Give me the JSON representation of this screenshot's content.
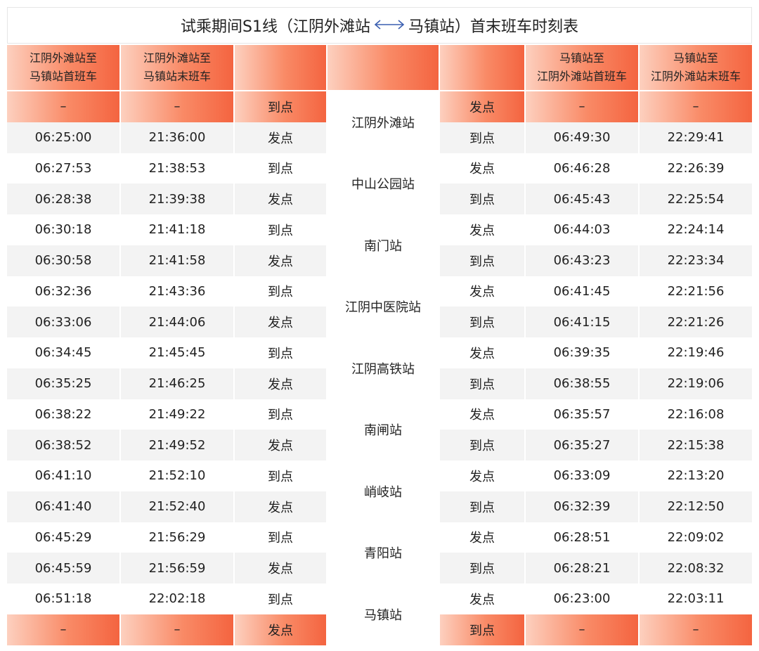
{
  "title": {
    "prefix": "试乘期间S1线（江阴外滩站",
    "suffix": "马镇站）首末班车时刻表",
    "arrow_icon": "left-right-arrow-icon"
  },
  "headers": {
    "col1": [
      "江阴外滩站至",
      "马镇站首班车"
    ],
    "col2": [
      "江阴外滩站至",
      "马镇站末班车"
    ],
    "col6": [
      "马镇站至",
      "江阴外滩站首班车"
    ],
    "col7": [
      "马镇站至",
      "江阴外滩站末班车"
    ]
  },
  "top_row": {
    "c1": "–",
    "c2": "–",
    "c3": "到点",
    "c5": "发点",
    "c6": "–",
    "c7": "–"
  },
  "bottom_row": {
    "c1": "–",
    "c2": "–",
    "c3": "发点",
    "c5": "到点",
    "c6": "–",
    "c7": "–"
  },
  "rows": [
    {
      "first": "06:25:00",
      "last": "21:36:00",
      "left_type": "发点",
      "right_type": "到点",
      "rfirst": "06:49:30",
      "rlast": "22:29:41"
    },
    {
      "first": "06:27:53",
      "last": "21:38:53",
      "left_type": "到点",
      "right_type": "发点",
      "rfirst": "06:46:28",
      "rlast": "22:26:39"
    },
    {
      "first": "06:28:38",
      "last": "21:39:38",
      "left_type": "发点",
      "right_type": "到点",
      "rfirst": "06:45:43",
      "rlast": "22:25:54"
    },
    {
      "first": "06:30:18",
      "last": "21:41:18",
      "left_type": "到点",
      "right_type": "发点",
      "rfirst": "06:44:03",
      "rlast": "22:24:14"
    },
    {
      "first": "06:30:58",
      "last": "21:41:58",
      "left_type": "发点",
      "right_type": "到点",
      "rfirst": "06:43:23",
      "rlast": "22:23:34"
    },
    {
      "first": "06:32:36",
      "last": "21:43:36",
      "left_type": "到点",
      "right_type": "发点",
      "rfirst": "06:41:45",
      "rlast": "22:21:56"
    },
    {
      "first": "06:33:06",
      "last": "21:44:06",
      "left_type": "发点",
      "right_type": "到点",
      "rfirst": "06:41:15",
      "rlast": "22:21:26"
    },
    {
      "first": "06:34:45",
      "last": "21:45:45",
      "left_type": "到点",
      "right_type": "发点",
      "rfirst": "06:39:35",
      "rlast": "22:19:46"
    },
    {
      "first": "06:35:25",
      "last": "21:46:25",
      "left_type": "发点",
      "right_type": "到点",
      "rfirst": "06:38:55",
      "rlast": "22:19:06"
    },
    {
      "first": "06:38:22",
      "last": "21:49:22",
      "left_type": "到点",
      "right_type": "发点",
      "rfirst": "06:35:57",
      "rlast": "22:16:08"
    },
    {
      "first": "06:38:52",
      "last": "21:49:52",
      "left_type": "发点",
      "right_type": "到点",
      "rfirst": "06:35:27",
      "rlast": "22:15:38"
    },
    {
      "first": "06:41:10",
      "last": "21:52:10",
      "left_type": "到点",
      "right_type": "发点",
      "rfirst": "06:33:09",
      "rlast": "22:13:20"
    },
    {
      "first": "06:41:40",
      "last": "21:52:40",
      "left_type": "发点",
      "right_type": "到点",
      "rfirst": "06:32:39",
      "rlast": "22:12:50"
    },
    {
      "first": "06:45:29",
      "last": "21:56:29",
      "left_type": "到点",
      "right_type": "发点",
      "rfirst": "06:28:51",
      "rlast": "22:09:02"
    },
    {
      "first": "06:45:59",
      "last": "21:56:59",
      "left_type": "发点",
      "right_type": "到点",
      "rfirst": "06:28:21",
      "rlast": "22:08:32"
    },
    {
      "first": "06:51:18",
      "last": "22:02:18",
      "left_type": "到点",
      "right_type": "发点",
      "rfirst": "06:23:00",
      "rlast": "22:03:11"
    }
  ],
  "stations": [
    "江阴外滩站",
    "中山公园站",
    "南门站",
    "江阴中医院站",
    "江阴高铁站",
    "南闸站",
    "峭岐站",
    "青阳站",
    "马镇站"
  ],
  "colors": {
    "accent_light": "#fdd0bf",
    "accent_dark": "#f46440",
    "row_alt": "#f3f3f3"
  }
}
